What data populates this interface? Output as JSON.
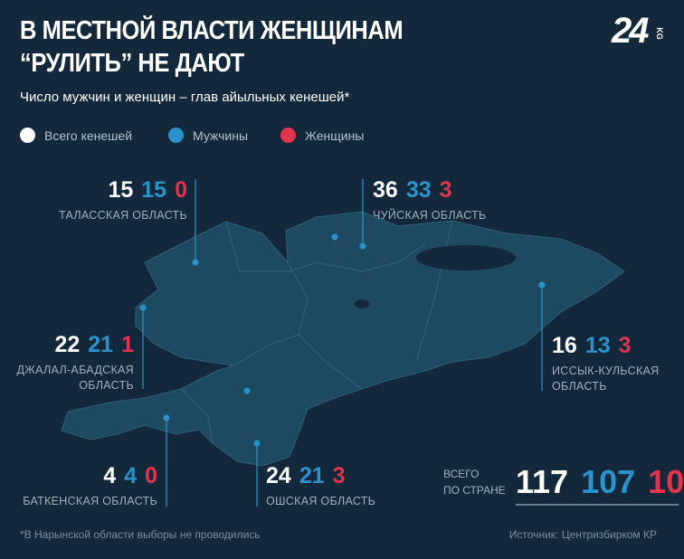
{
  "header": {
    "title_lines": [
      "В МЕСТНОЙ ВЛАСТИ ЖЕНЩИНАМ",
      "“РУЛИТЬ” НЕ ДАЮТ"
    ],
    "subtitle": "Число мужчин и женщин – глав айыльных кенешей*",
    "logo": "24",
    "logo_suffix": "KG"
  },
  "legend": [
    {
      "label": "Всего кенешей",
      "color": "#ffffff"
    },
    {
      "label": "Мужчины",
      "color": "#2b93cc"
    },
    {
      "label": "Женщины",
      "color": "#e2344e"
    }
  ],
  "regions": [
    {
      "name_lines": [
        "ТАЛАССКАЯ ОБЛАСТЬ"
      ],
      "total": 15,
      "men": 15,
      "women": 0
    },
    {
      "name_lines": [
        "ЧУЙСКАЯ ОБЛАСТЬ"
      ],
      "total": 36,
      "men": 33,
      "women": 3
    },
    {
      "name_lines": [
        "ДЖАЛАЛ-АБАДСКАЯ",
        "ОБЛАСТЬ"
      ],
      "total": 22,
      "men": 21,
      "women": 1
    },
    {
      "name_lines": [
        "ИССЫК-КУЛЬСКАЯ",
        "ОБЛАСТЬ"
      ],
      "total": 16,
      "men": 13,
      "women": 3
    },
    {
      "name_lines": [
        "БАТКЕНСКАЯ ОБЛАСТЬ"
      ],
      "total": 4,
      "men": 4,
      "women": 0
    },
    {
      "name_lines": [
        "ОШСКАЯ ОБЛАСТЬ"
      ],
      "total": 24,
      "men": 21,
      "women": 3
    }
  ],
  "totals": {
    "label_lines": [
      "ВСЕГО",
      "ПО СТРАНЕ"
    ],
    "total": 117,
    "men": 107,
    "women": 10
  },
  "footnote": "*В Нарынской области выборы не проводились",
  "source": "Источник: Центризбирком КР"
}
